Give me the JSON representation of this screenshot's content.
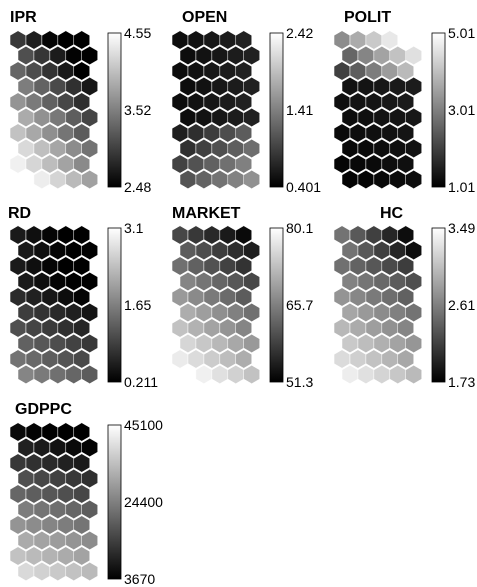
{
  "chart_data": [
    {
      "type": "heatmap",
      "title": "IPR",
      "colormap": "gray",
      "grid": "hexagonal",
      "ticks": [
        "4.55",
        "3.52",
        "2.48"
      ],
      "vmax": 4.55,
      "vmid": 3.52,
      "vmin": 2.48,
      "pattern": "ipr"
    },
    {
      "type": "heatmap",
      "title": "OPEN",
      "colormap": "gray",
      "grid": "hexagonal",
      "ticks": [
        "2.42",
        "1.41",
        "0.401"
      ],
      "vmax": 2.42,
      "vmid": 1.41,
      "vmin": 0.401,
      "pattern": "open"
    },
    {
      "type": "heatmap",
      "title": "POLIT",
      "colormap": "gray",
      "grid": "hexagonal",
      "ticks": [
        "5.01",
        "3.01",
        "1.01"
      ],
      "vmax": 5.01,
      "vmid": 3.01,
      "vmin": 1.01,
      "pattern": "polit"
    },
    {
      "type": "heatmap",
      "title": "RD",
      "colormap": "gray",
      "grid": "hexagonal",
      "ticks": [
        "3.1",
        "1.65",
        "0.211"
      ],
      "vmax": 3.1,
      "vmid": 1.65,
      "vmin": 0.211,
      "pattern": "rd"
    },
    {
      "type": "heatmap",
      "title": "MARKET",
      "colormap": "gray",
      "grid": "hexagonal",
      "ticks": [
        "80.1",
        "65.7",
        "51.3"
      ],
      "vmax": 80.1,
      "vmid": 65.7,
      "vmin": 51.3,
      "pattern": "market"
    },
    {
      "type": "heatmap",
      "title": "HC",
      "colormap": "gray",
      "grid": "hexagonal",
      "ticks": [
        "3.49",
        "2.61",
        "1.73"
      ],
      "vmax": 3.49,
      "vmid": 2.61,
      "vmin": 1.73,
      "pattern": "hc"
    },
    {
      "type": "heatmap",
      "title": "GDPPC",
      "colormap": "gray",
      "grid": "hexagonal",
      "ticks": [
        "45100",
        "24400",
        "3670"
      ],
      "vmax": 45100,
      "vmid": 24400,
      "vmin": 3670,
      "pattern": "gdppc"
    }
  ]
}
